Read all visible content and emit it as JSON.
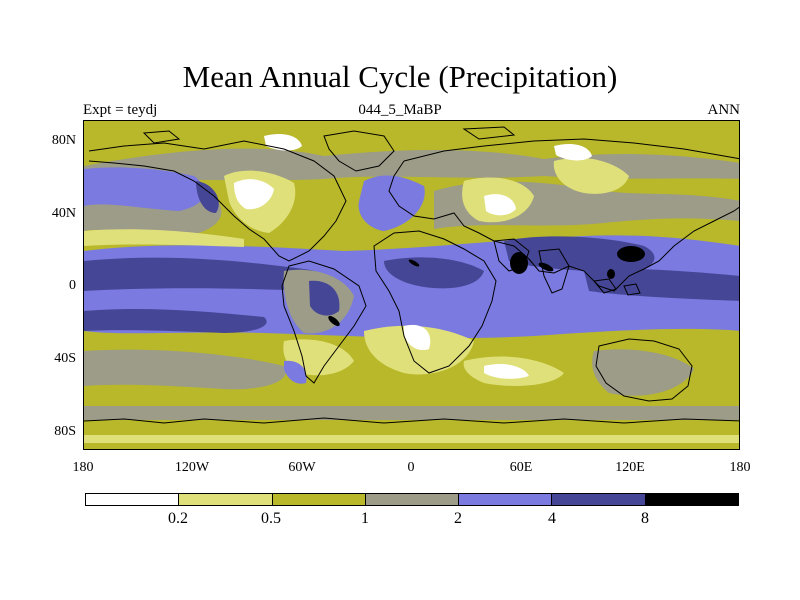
{
  "title": "Mean Annual Cycle (Precipitation)",
  "subtitle_left": "Expt = teydj",
  "subtitle_center": "044_5_MaBP",
  "subtitle_right": "ANN",
  "y_ticks": [
    "80N",
    "40N",
    "0",
    "40S",
    "80S"
  ],
  "x_ticks": [
    "180",
    "120W",
    "60W",
    "0",
    "60E",
    "120E",
    "180"
  ],
  "colorbar": {
    "colors": [
      "#ffffff",
      "#e0e07a",
      "#b8b82a",
      "#9c9c88",
      "#7a7ae0",
      "#464696",
      "#000000"
    ],
    "labels": [
      "0.2",
      "0.5",
      "1",
      "2",
      "4",
      "8"
    ]
  },
  "colors": {
    "level_0": "#ffffff",
    "level_1": "#e0e07a",
    "level_2": "#b8b82a",
    "level_3": "#9c9c88",
    "level_4": "#7a7ae0",
    "level_5": "#464696",
    "level_6": "#000000"
  }
}
